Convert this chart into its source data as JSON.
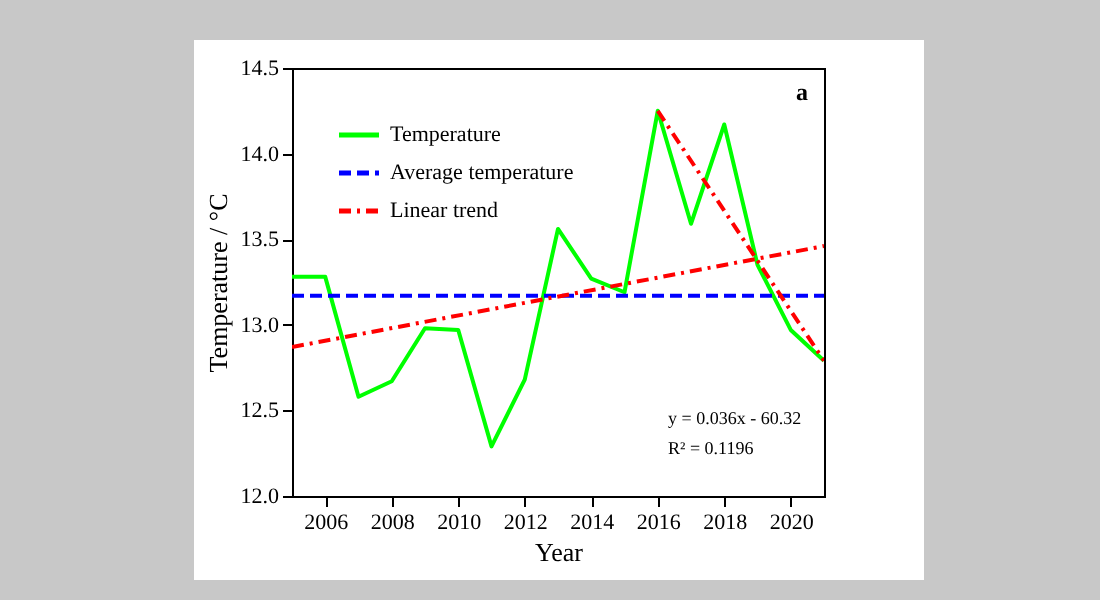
{
  "chart_data": {
    "type": "line",
    "xlabel": "Year",
    "ylabel": "Temperature / °C",
    "xlim": [
      2005,
      2021
    ],
    "xticks": [
      2006,
      2008,
      2010,
      2012,
      2014,
      2016,
      2018,
      2020
    ],
    "ylim": [
      12.0,
      14.5
    ],
    "yticks": [
      {
        "value": 12.0,
        "label": "12.0"
      },
      {
        "value": 12.5,
        "label": "12.5"
      },
      {
        "value": 13.0,
        "label": "13.0"
      },
      {
        "value": 13.5,
        "label": "13.5"
      },
      {
        "value": 14.0,
        "label": "14.0"
      },
      {
        "value": 14.5,
        "label": "14.5"
      }
    ],
    "grid": false,
    "legend": "top left",
    "marker": "none",
    "annotations": [
      "a",
      "y = 0.036x - 60.32",
      "R² = 0.1196"
    ],
    "series": [
      {
        "name": "Temperature",
        "color": "#00ff00",
        "line_style": "solid",
        "x": [
          2005,
          2006,
          2007,
          2008,
          2009,
          2010,
          2011,
          2012,
          2013,
          2014,
          2015,
          2016,
          2017,
          2018,
          2019,
          2020,
          2021
        ],
        "values": [
          13.28,
          13.28,
          12.58,
          12.67,
          12.98,
          12.97,
          12.29,
          12.68,
          13.56,
          13.27,
          13.19,
          14.25,
          13.59,
          14.17,
          13.35,
          12.97,
          12.79
        ]
      },
      {
        "name": "Average temperature",
        "color": "#0000ff",
        "line_style": "dashed",
        "x": [
          2005,
          2021
        ],
        "values": [
          13.17,
          13.17
        ]
      },
      {
        "name": "Linear trend",
        "color": "#ff0000",
        "line_style": "dotted",
        "x": [
          2005,
          2021
        ],
        "values": [
          12.87,
          13.46
        ]
      },
      {
        "color": "#ff0000",
        "line_style": "dotted",
        "x": [
          2016,
          2021
        ],
        "values": [
          14.25,
          12.79
        ]
      }
    ]
  }
}
